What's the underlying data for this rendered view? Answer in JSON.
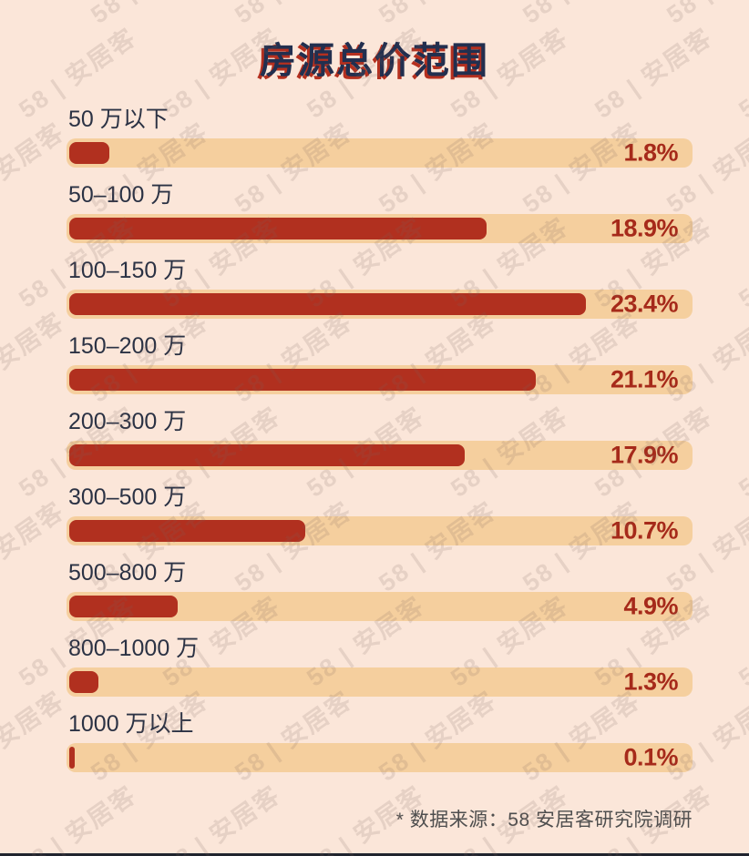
{
  "page": {
    "background_color": "#FBE6D9",
    "bottom_edge_color": "#20242E"
  },
  "watermark": {
    "text": "58 | 安居客"
  },
  "chart_data": {
    "type": "bar",
    "orientation": "horizontal",
    "title": "房源总价范围",
    "categories": [
      "50 万以下",
      "50–100 万",
      "100–150 万",
      "150–200 万",
      "200–300 万",
      "300–500 万",
      "500–800 万",
      "800–1000 万",
      "1000 万以上"
    ],
    "values": [
      1.8,
      18.9,
      23.4,
      21.1,
      17.9,
      10.7,
      4.9,
      1.3,
      0.1
    ],
    "value_labels": [
      "1.8%",
      "18.9%",
      "23.4%",
      "21.1%",
      "17.9%",
      "10.7%",
      "4.9%",
      "1.3%",
      "0.1%"
    ],
    "value_suffix": "%",
    "scale_max": 23.4,
    "legend": false,
    "grid": false,
    "footnote": "* 数据来源：58 安居客研究院调研",
    "colors": {
      "bar_fill": "#B1301F",
      "bar_track": "#F5CF9E",
      "value_text": "#A62A1A",
      "category_text": "#2B3244",
      "title_text": "#222F4F",
      "title_shadow": "#B5301F",
      "footnote_text": "#4E4E4E",
      "background": "#FBE6D9"
    }
  }
}
